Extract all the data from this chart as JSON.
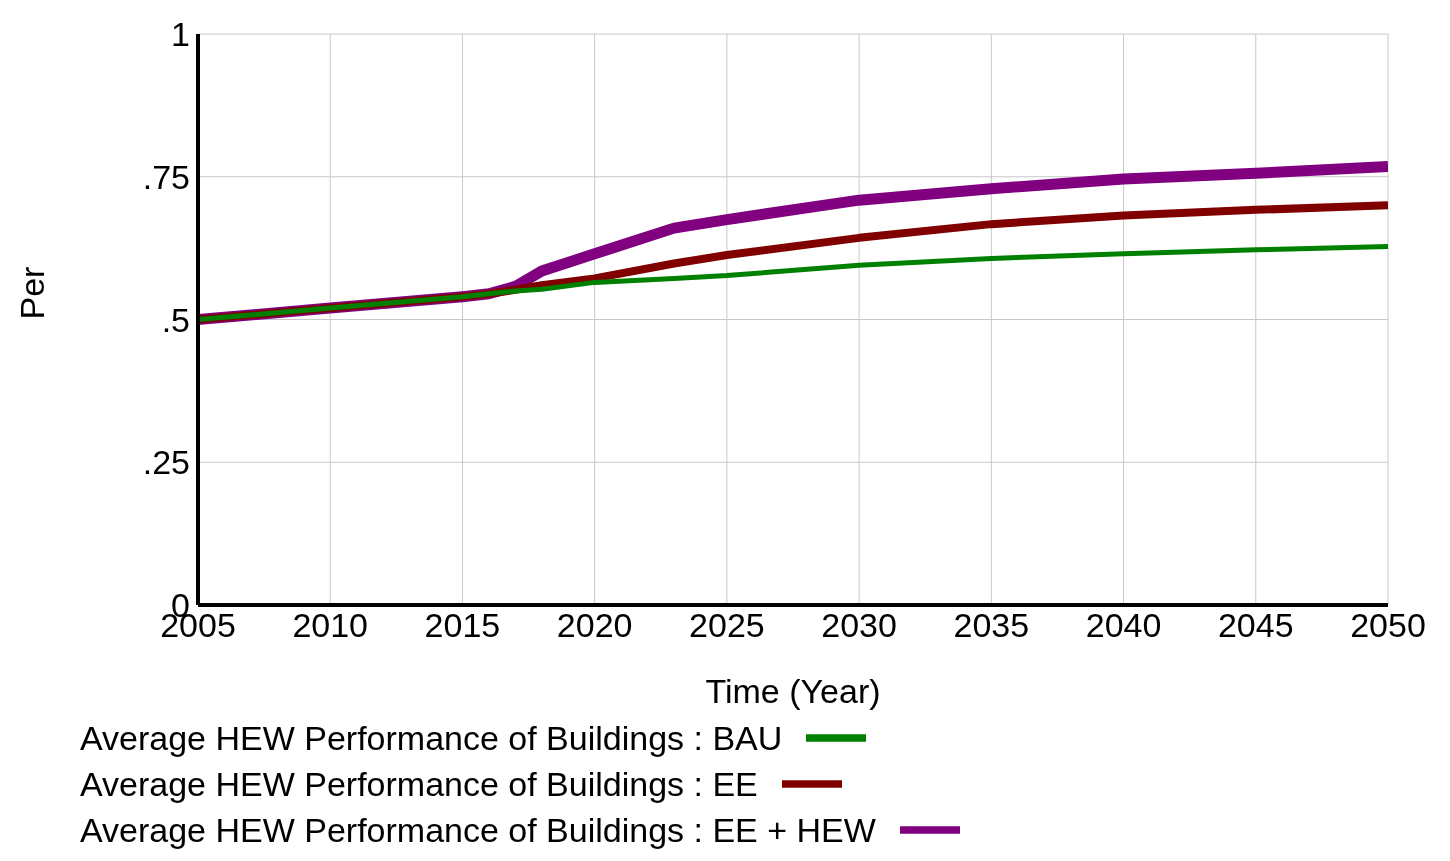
{
  "chart_data": {
    "type": "line",
    "xlabel": "Time (Year)",
    "ylabel": "Per",
    "x": [
      2005,
      2010,
      2015,
      2016,
      2017,
      2018,
      2020,
      2023,
      2025,
      2030,
      2035,
      2040,
      2045,
      2050
    ],
    "series": [
      {
        "name": "Average HEW Performance of Buildings : BAU",
        "color": "#008000",
        "values": [
          0.5,
          0.52,
          0.54,
          0.545,
          0.55,
          0.553,
          0.565,
          0.572,
          0.577,
          0.595,
          0.607,
          0.615,
          0.622,
          0.628
        ]
      },
      {
        "name": "Average HEW Performance of Buildings : EE",
        "color": "#800000",
        "values": [
          0.5,
          0.52,
          0.54,
          0.545,
          0.552,
          0.56,
          0.572,
          0.598,
          0.613,
          0.643,
          0.667,
          0.682,
          0.692,
          0.7
        ]
      },
      {
        "name": "Average HEW Performance of Buildings : EE + HEW",
        "color": "#800080",
        "values": [
          0.5,
          0.52,
          0.54,
          0.545,
          0.558,
          0.585,
          0.615,
          0.66,
          0.675,
          0.709,
          0.729,
          0.746,
          0.756,
          0.768
        ]
      }
    ],
    "xlim": [
      2005,
      2050
    ],
    "xticks": [
      2005,
      2010,
      2015,
      2020,
      2025,
      2030,
      2035,
      2040,
      2045,
      2050
    ],
    "ylim": [
      0,
      1
    ],
    "yticks": [
      {
        "value": 0,
        "label": "0"
      },
      {
        "value": 0.25,
        "label": ".25"
      },
      {
        "value": 0.5,
        "label": ".5"
      },
      {
        "value": 0.75,
        "label": ".75"
      },
      {
        "value": 1,
        "label": "1"
      }
    ],
    "grid": true,
    "legend": "bottom",
    "marker": "none",
    "line_style": "solid"
  }
}
